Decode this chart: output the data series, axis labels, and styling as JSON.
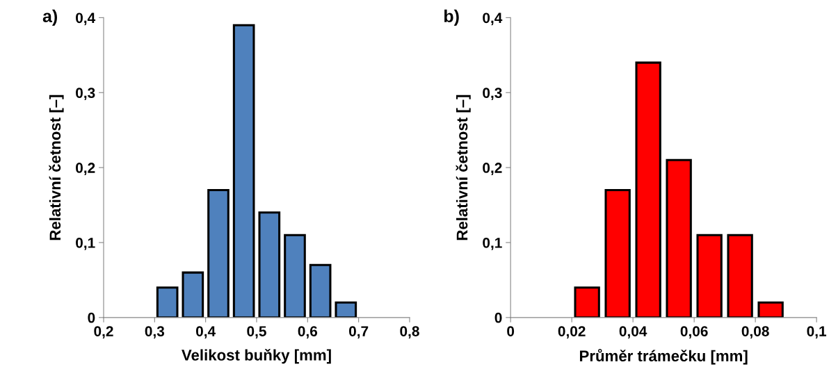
{
  "chart_data": [
    {
      "type": "histogram",
      "xlabel": "Velikost buňky [mm]",
      "ylabel": "Relativní četnost [–]",
      "annotations": [
        "a)"
      ],
      "bins": [
        0.3,
        0.35,
        0.4,
        0.45,
        0.5,
        0.55,
        0.6,
        0.65,
        0.7
      ],
      "values": [
        0.04,
        0.06,
        0.17,
        0.39,
        0.14,
        0.11,
        0.07,
        0.02
      ],
      "color": "#4f81bd",
      "xlim": [
        0.2,
        0.8
      ],
      "xticks": [
        {
          "value": 0.2,
          "label": "0,2"
        },
        {
          "value": 0.3,
          "label": "0,3"
        },
        {
          "value": 0.4,
          "label": "0,4"
        },
        {
          "value": 0.5,
          "label": "0,5"
        },
        {
          "value": 0.6,
          "label": "0,6"
        },
        {
          "value": 0.7,
          "label": "0,7"
        },
        {
          "value": 0.8,
          "label": "0,8"
        }
      ],
      "ylim": [
        0,
        0.4
      ],
      "yticks": [
        0,
        {
          "value": 0.1,
          "label": "0,1"
        },
        {
          "value": 0.2,
          "label": "0,2"
        },
        {
          "value": 0.3,
          "label": "0,3"
        },
        {
          "value": 0.4,
          "label": "0,4"
        }
      ],
      "grid": false
    },
    {
      "type": "histogram",
      "xlabel": "Průměr trámečku [mm]",
      "ylabel": "Relativní četnost [–]",
      "annotations": [
        "b)"
      ],
      "bins": [
        0.02,
        0.03,
        0.04,
        0.05,
        0.06,
        0.07,
        0.08,
        0.09
      ],
      "values": [
        0.04,
        0.17,
        0.34,
        0.21,
        0.11,
        0.11,
        0.02
      ],
      "color": "#ff0000",
      "xlim": [
        0,
        0.1
      ],
      "xticks": [
        0,
        {
          "value": 0.02,
          "label": "0,02"
        },
        {
          "value": 0.04,
          "label": "0,04"
        },
        {
          "value": 0.06,
          "label": "0,06"
        },
        {
          "value": 0.08,
          "label": "0,08"
        },
        {
          "value": 0.1,
          "label": "0,1"
        }
      ],
      "ylim": [
        0,
        0.4
      ],
      "yticks": [
        0,
        {
          "value": 0.1,
          "label": "0,1"
        },
        {
          "value": 0.2,
          "label": "0,2"
        },
        {
          "value": 0.3,
          "label": "0,3"
        },
        {
          "value": 0.4,
          "label": "0,4"
        }
      ],
      "grid": false
    }
  ]
}
